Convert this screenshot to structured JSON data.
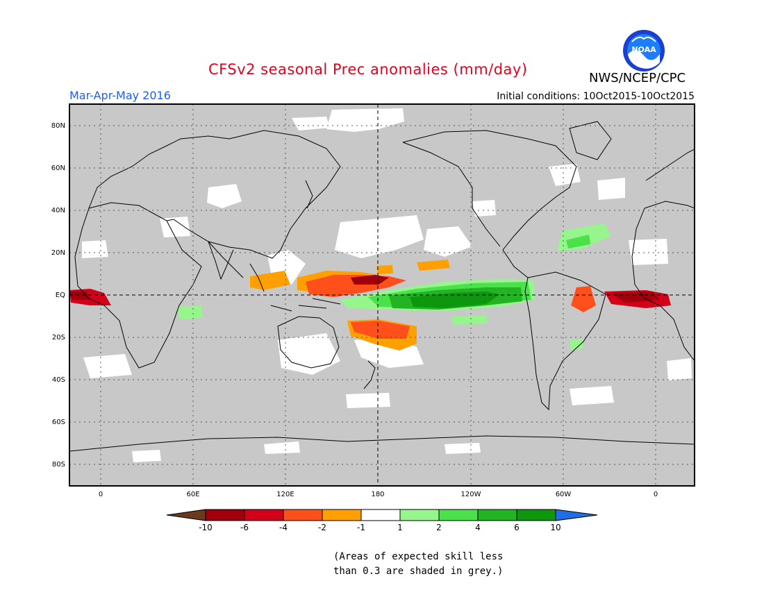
{
  "header": {
    "title": "CFSv2 seasonal Prec anomalies (mm/day)",
    "org": "NWS/NCEP/CPC",
    "season": "Mar-Apr-May 2016",
    "initial_conditions": "Initial conditions: 10Oct2015-10Oct2015",
    "logo_text": "NOAA"
  },
  "map": {
    "lat_labels": [
      "80N",
      "60N",
      "40N",
      "20N",
      "EQ",
      "20S",
      "40S",
      "60S",
      "80S"
    ],
    "lon_labels": [
      "0",
      "60E",
      "120E",
      "180",
      "120W",
      "60W",
      "0"
    ],
    "background_color": "#c8c8c8",
    "land_outline_color": "#000000"
  },
  "colorbar": {
    "labels": [
      "-10",
      "-6",
      "-4",
      "-2",
      "-1",
      "1",
      "2",
      "4",
      "6",
      "10"
    ],
    "colors": [
      "#6b3a1e",
      "#a0000c",
      "#d3001a",
      "#ff4f1a",
      "#ffa000",
      "#ffffff",
      "#96f58c",
      "#4be14b",
      "#22b422",
      "#0f960f",
      "#1f6ee6"
    ]
  },
  "footnote": {
    "line1": "(Areas of expected skill less",
    "line2": "than 0.3 are shaded in grey.)"
  }
}
